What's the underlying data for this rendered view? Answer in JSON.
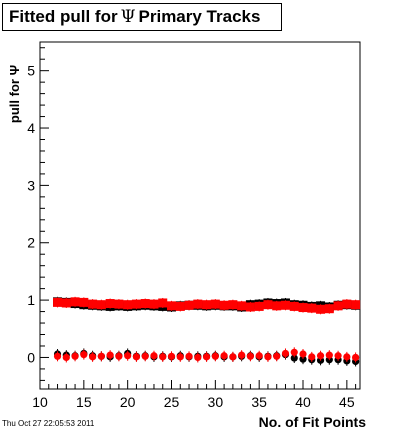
{
  "title": {
    "prefix": "Fitted pull for",
    "symbol": "Ψ",
    "suffix": "Primary Tracks"
  },
  "timestamp": "Thu Oct 27 22:05:53 2011",
  "colors": {
    "series_a": "#000000",
    "series_b": "#ff0000"
  },
  "chart_data": {
    "type": "scatter",
    "xlabel": "No. of Fit Points",
    "ylabel": "pull for Ψ",
    "xlim": [
      10,
      46.5
    ],
    "ylim": [
      -0.55,
      5.5
    ],
    "xticks": [
      10,
      15,
      20,
      25,
      30,
      35,
      40,
      45
    ],
    "yticks": [
      0,
      1,
      2,
      3,
      4,
      5
    ],
    "grid": false,
    "legend": "none",
    "x": [
      12,
      13,
      14,
      15,
      16,
      17,
      18,
      19,
      20,
      21,
      22,
      23,
      24,
      25,
      26,
      27,
      28,
      29,
      30,
      31,
      32,
      33,
      34,
      35,
      36,
      37,
      38,
      39,
      40,
      41,
      42,
      43,
      44,
      45,
      46
    ],
    "series": [
      {
        "color": "#000000",
        "marker": "circle",
        "values": [
          0.06,
          0.04,
          0.03,
          0.07,
          0.03,
          0.02,
          0.01,
          0.03,
          0.07,
          0.02,
          0.03,
          0.01,
          0.02,
          0.01,
          0.03,
          0.01,
          0.02,
          0.02,
          0.03,
          0.01,
          0.01,
          0.02,
          0.03,
          0.01,
          0.02,
          0.03,
          0.05,
          -0.01,
          -0.03,
          -0.04,
          -0.05,
          -0.04,
          -0.04,
          -0.06,
          -0.07
        ]
      },
      {
        "color": "#000000",
        "marker": "square",
        "values": [
          0.97,
          0.96,
          0.94,
          0.92,
          0.91,
          0.9,
          0.89,
          0.9,
          0.89,
          0.9,
          0.91,
          0.9,
          0.89,
          0.88,
          0.9,
          0.91,
          0.91,
          0.9,
          0.91,
          0.9,
          0.9,
          0.88,
          0.92,
          0.93,
          0.95,
          0.94,
          0.95,
          0.92,
          0.91,
          0.89,
          0.9,
          0.88,
          0.91,
          0.92,
          0.91
        ]
      },
      {
        "color": "#ff0000",
        "marker": "circle",
        "values": [
          0.02,
          0.0,
          0.02,
          0.05,
          0.01,
          0.02,
          0.04,
          0.02,
          0.03,
          0.01,
          0.02,
          0.03,
          0.01,
          0.02,
          0.01,
          0.02,
          0.0,
          0.01,
          0.02,
          0.03,
          0.01,
          0.04,
          0.02,
          0.03,
          0.01,
          0.02,
          0.07,
          0.09,
          0.06,
          0.01,
          0.03,
          0.04,
          0.03,
          0.01,
          0.0
        ]
      },
      {
        "color": "#ff0000",
        "marker": "square",
        "values": [
          0.96,
          0.95,
          0.97,
          0.96,
          0.93,
          0.92,
          0.94,
          0.93,
          0.92,
          0.93,
          0.94,
          0.93,
          0.95,
          0.9,
          0.89,
          0.91,
          0.93,
          0.92,
          0.93,
          0.91,
          0.92,
          0.9,
          0.88,
          0.89,
          0.92,
          0.9,
          0.91,
          0.89,
          0.87,
          0.86,
          0.84,
          0.85,
          0.9,
          0.93,
          0.92
        ]
      }
    ]
  }
}
